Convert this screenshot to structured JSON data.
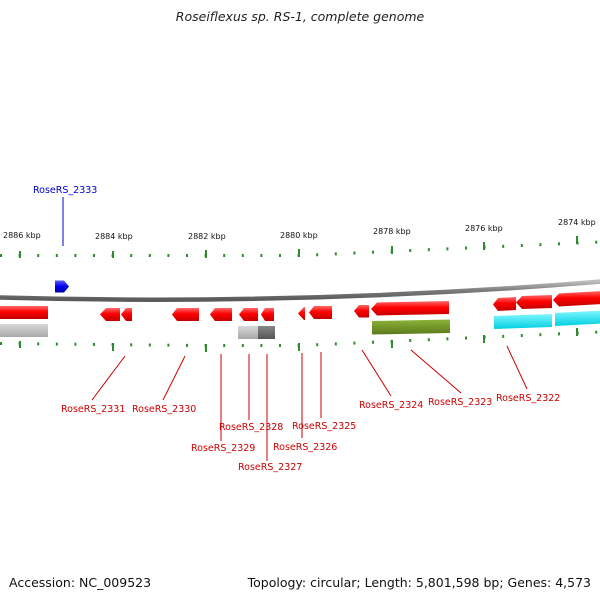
{
  "title": "Roseiflexus sp. RS-1, complete genome",
  "footer": {
    "accession": "Accession: NC_009523",
    "summary": "Topology: circular; Length: 5,801,598 bp; Genes: 4,573"
  },
  "colors": {
    "backbone": "#8a8a8a",
    "tick": "#2e8b2e",
    "gene_forward": "#0000ee",
    "gene_reverse": "#ee0000",
    "label_forward": "#0000cc",
    "label_reverse": "#cc0000",
    "feature_gray": "#b8b8b8",
    "feature_darkgray": "#666666",
    "feature_olive": "#6b8e23",
    "feature_cyan": "#00e5ee"
  },
  "scale": {
    "unit": "kbp",
    "ticks": [
      {
        "label": "2886 kbp"
      },
      {
        "label": "2884 kbp"
      },
      {
        "label": "2882 kbp"
      },
      {
        "label": "2880 kbp"
      },
      {
        "label": "2878 kbp"
      },
      {
        "label": "2876 kbp"
      },
      {
        "label": "2874 kbp"
      }
    ]
  },
  "genes": {
    "forward": [
      {
        "id": "RoseRS_2333"
      }
    ],
    "reverse": [
      {
        "id": "RoseRS_2331"
      },
      {
        "id": "RoseRS_2330"
      },
      {
        "id": "RoseRS_2329"
      },
      {
        "id": "RoseRS_2328"
      },
      {
        "id": "RoseRS_2327"
      },
      {
        "id": "RoseRS_2326"
      },
      {
        "id": "RoseRS_2325"
      },
      {
        "id": "RoseRS_2324"
      },
      {
        "id": "RoseRS_2323"
      },
      {
        "id": "RoseRS_2322"
      }
    ]
  }
}
